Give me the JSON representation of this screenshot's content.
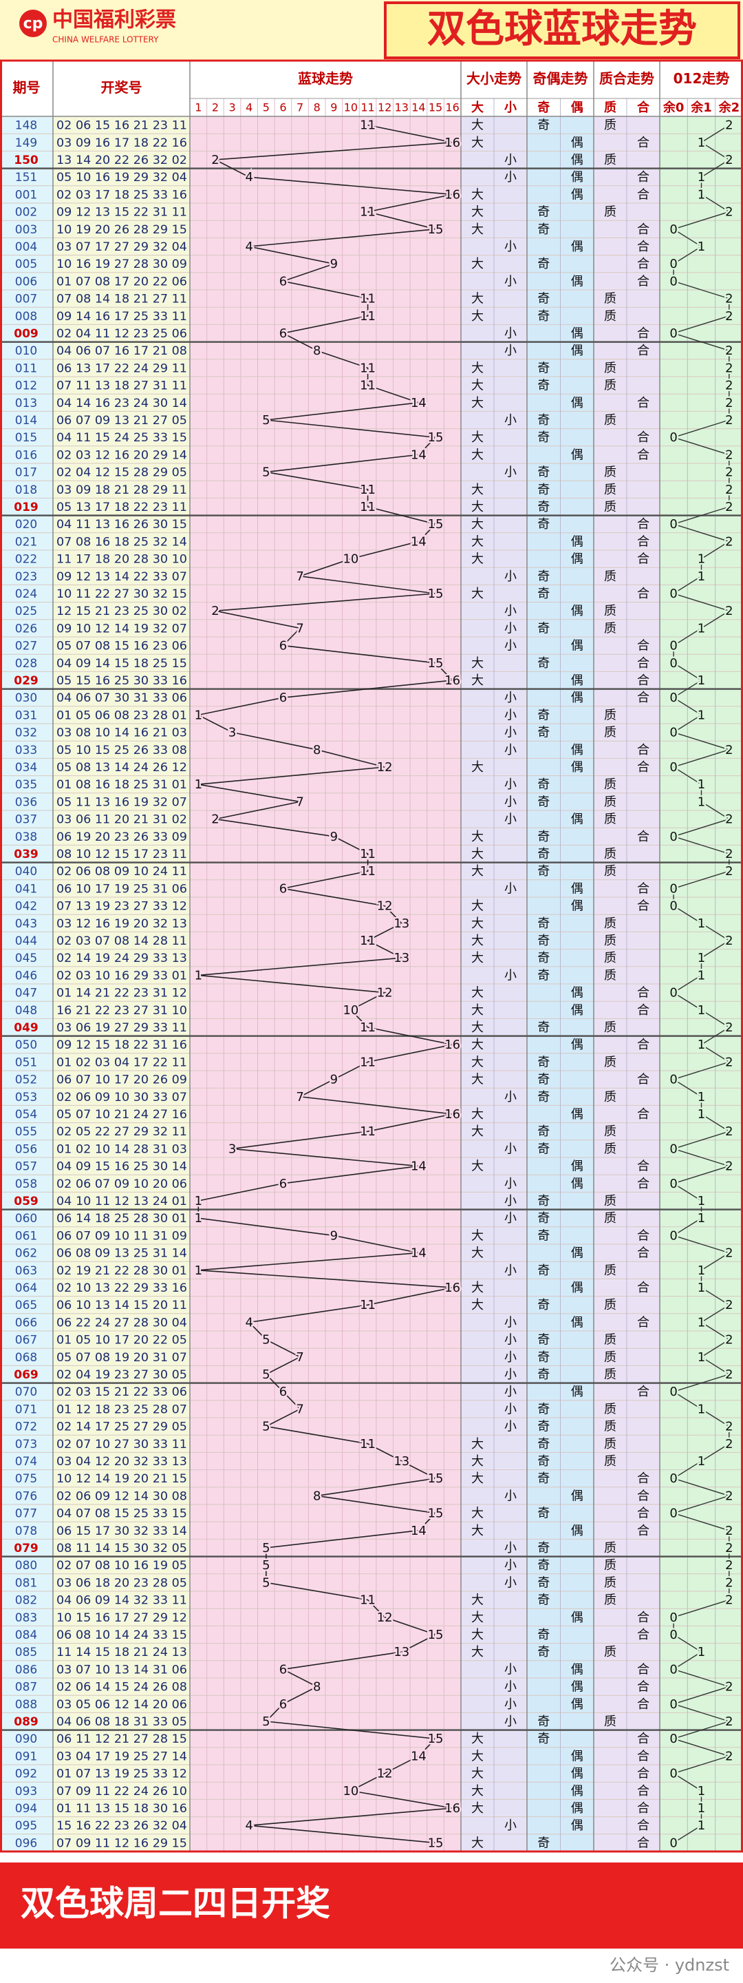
{
  "header": {
    "logo": "中国福利彩票",
    "logo_en": "CHINA WELFARE LOTTERY",
    "title": "双色球蓝球走势"
  },
  "table": {
    "columns": [
      "期号",
      "开奖号",
      "蓝球走势",
      "大小走势",
      "奇偶走势",
      "质合走势",
      "012走势"
    ],
    "blue_cols": [
      1,
      2,
      3,
      4,
      5,
      6,
      7,
      8,
      9,
      10,
      11,
      12,
      13,
      14,
      15,
      16
    ],
    "sub_cols": [
      "大",
      "小",
      "奇",
      "偶",
      "质",
      "合",
      "余0",
      "余1",
      "余2"
    ],
    "rows": [
      [
        "148",
        "02 06 15 16 21 23 11",
        11,
        "大",
        "奇",
        "质",
        2
      ],
      [
        "149",
        "03 09 16 17 18 22 16",
        16,
        "大",
        "偶",
        "合",
        1
      ],
      [
        "150",
        "13 14 20 22 26 32 02",
        2,
        "小",
        "偶",
        "质",
        2
      ],
      [
        "151",
        "05 10 16 19 29 32 04",
        4,
        "小",
        "偶",
        "合",
        1
      ],
      [
        "001",
        "02 03 17 18 25 33 16",
        16,
        "大",
        "偶",
        "合",
        1
      ],
      [
        "002",
        "09 12 13 15 22 31 11",
        11,
        "大",
        "奇",
        "质",
        2
      ],
      [
        "003",
        "10 19 20 26 28 29 15",
        15,
        "大",
        "奇",
        "合",
        0
      ],
      [
        "004",
        "03 07 17 27 29 32 04",
        4,
        "小",
        "偶",
        "合",
        1
      ],
      [
        "005",
        "10 16 19 27 28 30 09",
        9,
        "大",
        "奇",
        "合",
        0
      ],
      [
        "006",
        "01 07 08 17 20 22 06",
        6,
        "小",
        "偶",
        "合",
        0
      ],
      [
        "007",
        "07 08 14 18 21 27 11",
        11,
        "大",
        "奇",
        "质",
        2
      ],
      [
        "008",
        "09 14 16 17 25 33 11",
        11,
        "大",
        "奇",
        "质",
        2
      ],
      [
        "009",
        "02 04 11 12 23 25 06",
        6,
        "小",
        "偶",
        "合",
        0
      ],
      [
        "010",
        "04 06 07 16 17 21 08",
        8,
        "小",
        "偶",
        "合",
        2
      ],
      [
        "011",
        "06 13 17 22 24 29 11",
        11,
        "大",
        "奇",
        "质",
        2
      ],
      [
        "012",
        "07 11 13 18 27 31 11",
        11,
        "大",
        "奇",
        "质",
        2
      ],
      [
        "013",
        "04 14 16 23 24 30 14",
        14,
        "大",
        "偶",
        "合",
        2
      ],
      [
        "014",
        "06 07 09 13 21 27 05",
        5,
        "小",
        "奇",
        "质",
        2
      ],
      [
        "015",
        "04 11 15 24 25 33 15",
        15,
        "大",
        "奇",
        "合",
        0
      ],
      [
        "016",
        "02 03 12 16 20 29 14",
        14,
        "大",
        "偶",
        "合",
        2
      ],
      [
        "017",
        "02 04 12 15 28 29 05",
        5,
        "小",
        "奇",
        "质",
        2
      ],
      [
        "018",
        "03 09 18 21 28 29 11",
        11,
        "大",
        "奇",
        "质",
        2
      ],
      [
        "019",
        "05 13 17 18 22 23 11",
        11,
        "大",
        "奇",
        "质",
        2
      ],
      [
        "020",
        "04 11 13 16 26 30 15",
        15,
        "大",
        "奇",
        "合",
        0
      ],
      [
        "021",
        "07 08 16 18 25 32 14",
        14,
        "大",
        "偶",
        "合",
        2
      ],
      [
        "022",
        "11 17 18 20 28 30 10",
        10,
        "大",
        "偶",
        "合",
        1
      ],
      [
        "023",
        "09 12 13 14 22 33 07",
        7,
        "小",
        "奇",
        "质",
        1
      ],
      [
        "024",
        "10 11 22 27 30 32 15",
        15,
        "大",
        "奇",
        "合",
        0
      ],
      [
        "025",
        "12 15 21 23 25 30 02",
        2,
        "小",
        "偶",
        "质",
        2
      ],
      [
        "026",
        "09 10 12 14 19 32 07",
        7,
        "小",
        "奇",
        "质",
        1
      ],
      [
        "027",
        "05 07 08 15 16 23 06",
        6,
        "小",
        "偶",
        "合",
        0
      ],
      [
        "028",
        "04 09 14 15 18 25 15",
        15,
        "大",
        "奇",
        "合",
        0
      ],
      [
        "029",
        "05 15 16 25 30 33 16",
        16,
        "大",
        "偶",
        "合",
        1
      ],
      [
        "030",
        "04 06 07 30 31 33 06",
        6,
        "小",
        "偶",
        "合",
        0
      ],
      [
        "031",
        "01 05 06 08 23 28 01",
        1,
        "小",
        "奇",
        "质",
        1
      ],
      [
        "032",
        "03 08 10 14 16 21 03",
        3,
        "小",
        "奇",
        "质",
        0
      ],
      [
        "033",
        "05 10 15 25 26 33 08",
        8,
        "小",
        "偶",
        "合",
        2
      ],
      [
        "034",
        "05 08 13 14 24 26 12",
        12,
        "大",
        "偶",
        "合",
        0
      ],
      [
        "035",
        "01 08 16 18 25 31 01",
        1,
        "小",
        "奇",
        "质",
        1
      ],
      [
        "036",
        "05 11 13 16 19 32 07",
        7,
        "小",
        "奇",
        "质",
        1
      ],
      [
        "037",
        "03 06 11 20 21 31 02",
        2,
        "小",
        "偶",
        "质",
        2
      ],
      [
        "038",
        "06 19 20 23 26 33 09",
        9,
        "大",
        "奇",
        "合",
        0
      ],
      [
        "039",
        "08 10 12 15 17 23 11",
        11,
        "大",
        "奇",
        "质",
        2
      ],
      [
        "040",
        "02 06 08 09 10 24 11",
        11,
        "大",
        "奇",
        "质",
        2
      ],
      [
        "041",
        "06 10 17 19 25 31 06",
        6,
        "小",
        "偶",
        "合",
        0
      ],
      [
        "042",
        "07 13 19 23 27 33 12",
        12,
        "大",
        "偶",
        "合",
        0
      ],
      [
        "043",
        "03 12 16 19 20 32 13",
        13,
        "大",
        "奇",
        "质",
        1
      ],
      [
        "044",
        "02 03 07 08 14 28 11",
        11,
        "大",
        "奇",
        "质",
        2
      ],
      [
        "045",
        "02 14 19 24 29 33 13",
        13,
        "大",
        "奇",
        "质",
        1
      ],
      [
        "046",
        "02 03 10 16 29 33 01",
        1,
        "小",
        "奇",
        "质",
        1
      ],
      [
        "047",
        "01 14 21 22 23 31 12",
        12,
        "大",
        "偶",
        "合",
        0
      ],
      [
        "048",
        "16 21 22 23 27 31 10",
        10,
        "大",
        "偶",
        "合",
        1
      ],
      [
        "049",
        "03 06 19 27 29 33 11",
        11,
        "大",
        "奇",
        "质",
        2
      ],
      [
        "050",
        "09 12 15 18 22 31 16",
        16,
        "大",
        "偶",
        "合",
        1
      ],
      [
        "051",
        "01 02 03 04 17 22 11",
        11,
        "大",
        "奇",
        "质",
        2
      ],
      [
        "052",
        "06 07 10 17 20 26 09",
        9,
        "大",
        "奇",
        "合",
        0
      ],
      [
        "053",
        "02 06 09 10 30 33 07",
        7,
        "小",
        "奇",
        "质",
        1
      ],
      [
        "054",
        "05 07 10 21 24 27 16",
        16,
        "大",
        "偶",
        "合",
        1
      ],
      [
        "055",
        "02 05 22 27 29 32 11",
        11,
        "大",
        "奇",
        "质",
        2
      ],
      [
        "056",
        "01 02 10 14 28 31 03",
        3,
        "小",
        "奇",
        "质",
        0
      ],
      [
        "057",
        "04 09 15 16 25 30 14",
        14,
        "大",
        "偶",
        "合",
        2
      ],
      [
        "058",
        "02 06 07 09 10 20 06",
        6,
        "小",
        "偶",
        "合",
        0
      ],
      [
        "059",
        "04 10 11 12 13 24 01",
        1,
        "小",
        "奇",
        "质",
        1
      ],
      [
        "060",
        "06 14 18 25 28 30 01",
        1,
        "小",
        "奇",
        "质",
        1
      ],
      [
        "061",
        "06 07 09 10 11 31 09",
        9,
        "大",
        "奇",
        "合",
        0
      ],
      [
        "062",
        "06 08 09 13 25 31 14",
        14,
        "大",
        "偶",
        "合",
        2
      ],
      [
        "063",
        "02 19 21 22 28 30 01",
        1,
        "小",
        "奇",
        "质",
        1
      ],
      [
        "064",
        "02 10 13 22 29 33 16",
        16,
        "大",
        "偶",
        "合",
        1
      ],
      [
        "065",
        "06 10 13 14 15 20 11",
        11,
        "大",
        "奇",
        "质",
        2
      ],
      [
        "066",
        "06 22 24 27 28 30 04",
        4,
        "小",
        "偶",
        "合",
        1
      ],
      [
        "067",
        "01 05 10 17 20 22 05",
        5,
        "小",
        "奇",
        "质",
        2
      ],
      [
        "068",
        "05 07 08 19 20 31 07",
        7,
        "小",
        "奇",
        "质",
        1
      ],
      [
        "069",
        "02 04 19 23 27 30 05",
        5,
        "小",
        "奇",
        "质",
        2
      ],
      [
        "070",
        "02 03 15 21 22 33 06",
        6,
        "小",
        "偶",
        "合",
        0
      ],
      [
        "071",
        "01 12 18 23 25 28 07",
        7,
        "小",
        "奇",
        "质",
        1
      ],
      [
        "072",
        "02 14 17 25 27 29 05",
        5,
        "小",
        "奇",
        "质",
        2
      ],
      [
        "073",
        "02 07 10 27 30 33 11",
        11,
        "大",
        "奇",
        "质",
        2
      ],
      [
        "074",
        "03 04 12 20 32 33 13",
        13,
        "大",
        "奇",
        "质",
        1
      ],
      [
        "075",
        "10 12 14 19 20 21 15",
        15,
        "大",
        "奇",
        "合",
        0
      ],
      [
        "076",
        "02 06 09 12 14 30 08",
        8,
        "小",
        "偶",
        "合",
        2
      ],
      [
        "077",
        "04 07 08 15 25 33 15",
        15,
        "大",
        "奇",
        "合",
        0
      ],
      [
        "078",
        "06 15 17 30 32 33 14",
        14,
        "大",
        "偶",
        "合",
        2
      ],
      [
        "079",
        "08 11 14 15 30 32 05",
        5,
        "小",
        "奇",
        "质",
        2
      ],
      [
        "080",
        "02 07 08 10 16 19 05",
        5,
        "小",
        "奇",
        "质",
        2
      ],
      [
        "081",
        "03 06 18 20 23 28 05",
        5,
        "小",
        "奇",
        "质",
        2
      ],
      [
        "082",
        "04 06 09 14 32 33 11",
        11,
        "大",
        "奇",
        "质",
        2
      ],
      [
        "083",
        "10 15 16 17 27 29 12",
        12,
        "大",
        "偶",
        "合",
        0
      ],
      [
        "084",
        "06 08 10 14 24 33 15",
        15,
        "大",
        "奇",
        "合",
        0
      ],
      [
        "085",
        "11 14 15 18 21 24 13",
        13,
        "大",
        "奇",
        "质",
        1
      ],
      [
        "086",
        "03 07 10 13 14 31 06",
        6,
        "小",
        "偶",
        "合",
        0
      ],
      [
        "087",
        "02 06 14 15 24 26 08",
        8,
        "小",
        "偶",
        "合",
        2
      ],
      [
        "088",
        "03 05 06 12 14 20 06",
        6,
        "小",
        "偶",
        "合",
        0
      ],
      [
        "089",
        "04 06 08 18 31 33 05",
        5,
        "小",
        "奇",
        "质",
        2
      ],
      [
        "090",
        "06 11 12 21 27 28 15",
        15,
        "大",
        "奇",
        "合",
        0
      ],
      [
        "091",
        "03 04 17 19 25 27 14",
        14,
        "大",
        "偶",
        "合",
        2
      ],
      [
        "092",
        "01 07 13 19 25 33 12",
        12,
        "大",
        "偶",
        "合",
        0
      ],
      [
        "093",
        "07 09 11 22 24 26 10",
        10,
        "大",
        "偶",
        "合",
        1
      ],
      [
        "094",
        "01 11 13 15 18 30 16",
        16,
        "大",
        "偶",
        "合",
        1
      ],
      [
        "095",
        "15 16 22 23 26 32 04",
        4,
        "小",
        "偶",
        "合",
        1
      ],
      [
        "096",
        "07 09 11 12 16 29 15",
        15,
        "大",
        "奇",
        "合",
        0
      ]
    ]
  },
  "footer": {
    "text": "双色球周二四日开奖",
    "watermark": "公众号 · ydnzst"
  }
}
